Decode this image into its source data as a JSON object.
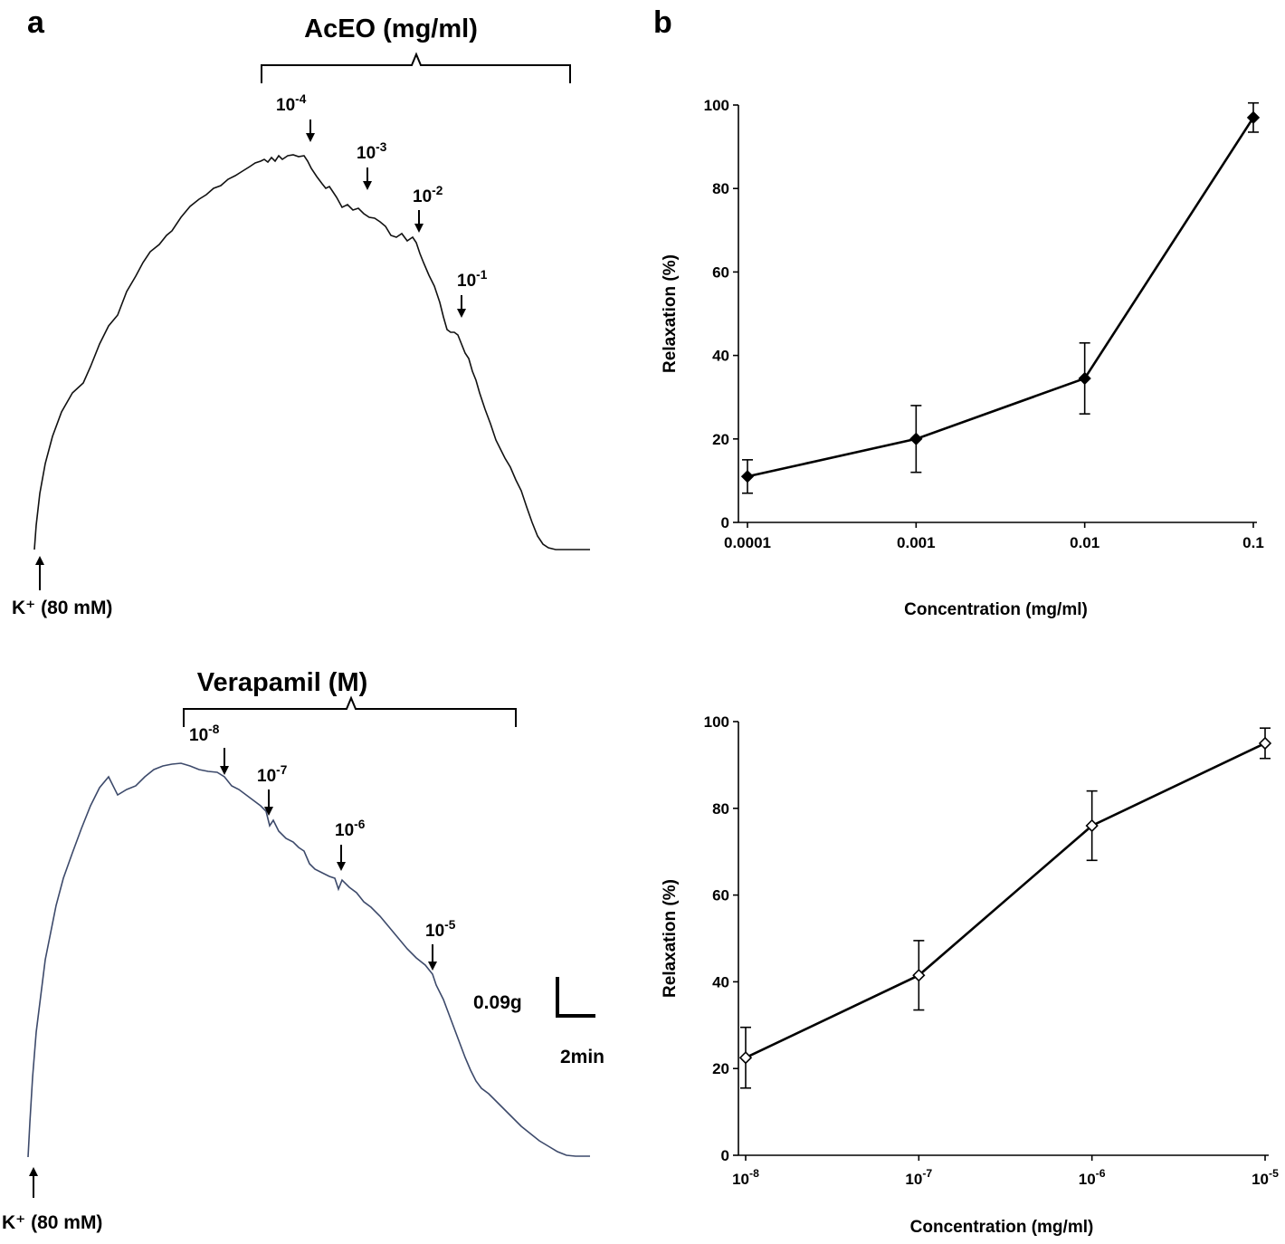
{
  "panel_labels": {
    "a": "a",
    "b": "b"
  },
  "traces": {
    "top": {
      "agent_label": "AcEO (mg/ml)",
      "stimulus_label": "K⁺ (80 mM)",
      "doses": [
        {
          "base": "10",
          "exp": "-4"
        },
        {
          "base": "10",
          "exp": "-3"
        },
        {
          "base": "10",
          "exp": "-2"
        },
        {
          "base": "10",
          "exp": "-1"
        }
      ]
    },
    "bottom": {
      "agent_label": "Verapamil (M)",
      "stimulus_label": "K⁺ (80 mM)",
      "doses": [
        {
          "base": "10",
          "exp": "-8"
        },
        {
          "base": "10",
          "exp": "-7"
        },
        {
          "base": "10",
          "exp": "-6"
        },
        {
          "base": "10",
          "exp": "-5"
        }
      ]
    },
    "scale_bar": {
      "force": "0.09g",
      "time": "2min"
    }
  },
  "chart_data": [
    {
      "type": "line",
      "title": "",
      "xlabel": "Concentration (mg/ml)",
      "ylabel": "Relaxation (%)",
      "x_scale": "log",
      "categories": [
        "0.0001",
        "0.001",
        "0.01",
        "0.1"
      ],
      "ylim": [
        0,
        100
      ],
      "yticks": [
        0,
        20,
        40,
        60,
        80,
        100
      ],
      "grid": false,
      "marker": "filled-diamond",
      "series": [
        {
          "values": [
            11,
            20,
            34.5,
            97
          ],
          "errors": [
            4,
            8,
            8.5,
            3.5
          ]
        }
      ]
    },
    {
      "type": "line",
      "title": "",
      "xlabel": "Concentration (mg/ml)",
      "ylabel": "Relaxation (%)",
      "x_scale": "log",
      "categories": [
        {
          "base": "10",
          "exp": "-8"
        },
        {
          "base": "10",
          "exp": "-7"
        },
        {
          "base": "10",
          "exp": "-6"
        },
        {
          "base": "10",
          "exp": "-5"
        }
      ],
      "ylim": [
        0,
        100
      ],
      "yticks": [
        0,
        20,
        40,
        60,
        80,
        100
      ],
      "grid": false,
      "marker": "open-diamond",
      "series": [
        {
          "values": [
            22.5,
            41.5,
            76,
            95
          ],
          "errors": [
            7,
            8,
            8,
            3.5
          ]
        }
      ]
    }
  ]
}
